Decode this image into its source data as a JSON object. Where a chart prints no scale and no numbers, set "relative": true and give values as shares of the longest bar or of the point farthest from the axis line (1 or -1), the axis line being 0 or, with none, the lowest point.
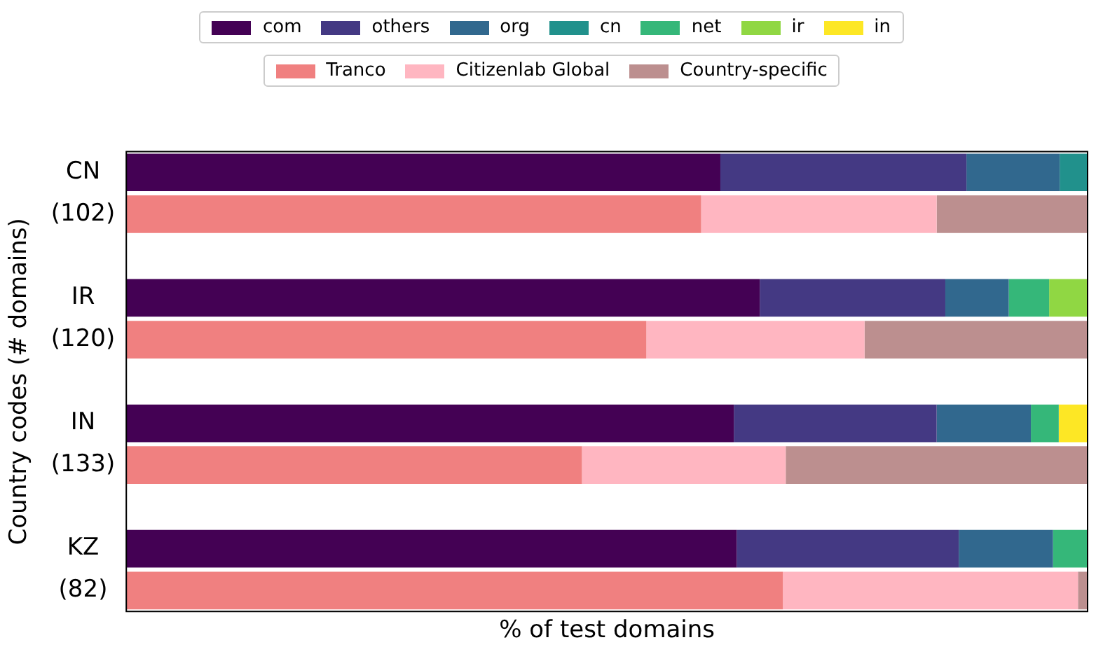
{
  "chart_data": {
    "type": "bar",
    "orientation": "horizontal",
    "stacked": true,
    "relative": true,
    "xlabel": "% of test domains",
    "ylabel": "Country codes (# domains)",
    "categories": [
      "CN",
      "(102)",
      null,
      "IR",
      "(120)",
      null,
      "IN",
      "(133)",
      null,
      "KZ",
      "(82)"
    ],
    "grid": false,
    "legend": "top",
    "series": [
      {
        "name": "com",
        "color": "#440154",
        "values": [
          0.618,
          null,
          null,
          0.659,
          null,
          null,
          0.632,
          null,
          null,
          0.635,
          null
        ]
      },
      {
        "name": "others",
        "color": "#443983",
        "values": [
          0.256,
          null,
          null,
          0.193,
          null,
          null,
          0.211,
          null,
          null,
          0.231,
          null
        ]
      },
      {
        "name": "org",
        "color": "#31688e",
        "values": [
          0.097,
          null,
          null,
          0.066,
          null,
          null,
          0.098,
          null,
          null,
          0.098,
          null
        ]
      },
      {
        "name": "cn",
        "color": "#21918c",
        "values": [
          0.029,
          null,
          null,
          0,
          null,
          null,
          0,
          null,
          null,
          0,
          null
        ]
      },
      {
        "name": "net",
        "color": "#35b779",
        "values": [
          0,
          null,
          null,
          0.042,
          null,
          null,
          0.029,
          null,
          null,
          0.036,
          null
        ]
      },
      {
        "name": "ir",
        "color": "#90d743",
        "values": [
          0,
          null,
          null,
          0.04,
          null,
          null,
          0,
          null,
          null,
          0,
          null
        ]
      },
      {
        "name": "in",
        "color": "#fde725",
        "values": [
          0,
          null,
          null,
          0,
          null,
          null,
          0.03,
          null,
          null,
          0,
          null
        ]
      },
      {
        "name": "Tranco",
        "color": "#f08080",
        "values": [
          null,
          0.598,
          null,
          null,
          0.541,
          null,
          null,
          0.474,
          null,
          null,
          0.683
        ]
      },
      {
        "name": "Citizenlab Global",
        "color": "#ffb6c1",
        "values": [
          null,
          0.245,
          null,
          null,
          0.227,
          null,
          null,
          0.212,
          null,
          null,
          0.307
        ]
      },
      {
        "name": "Country-specific",
        "color": "#bc8f8f",
        "values": [
          null,
          0.157,
          null,
          null,
          0.232,
          null,
          null,
          0.314,
          null,
          null,
          0.01
        ]
      }
    ]
  }
}
